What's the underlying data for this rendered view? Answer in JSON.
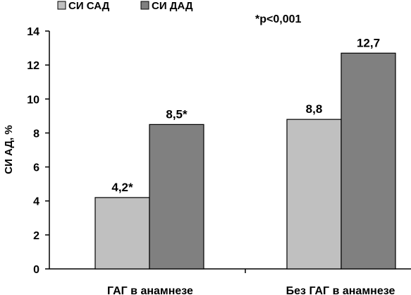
{
  "chart_data": {
    "type": "bar",
    "title": "",
    "xlabel": "",
    "ylabel": "СИ  АД, %",
    "ylim": [
      0,
      14
    ],
    "yticks": [
      0,
      2,
      4,
      6,
      8,
      10,
      12,
      14
    ],
    "y_tick_labels": [
      "0",
      "2",
      "4",
      "6",
      "8",
      "10",
      "12",
      "14"
    ],
    "grid": false,
    "legend_position": "top-left",
    "annotation": "*р<0,001",
    "categories": [
      "ГАГ в анамнезе",
      "Без ГАГ в анамнезе"
    ],
    "series": [
      {
        "name": "СИ САД",
        "values": [
          4.2,
          8.8
        ],
        "labels": [
          "4,2*",
          "8,8"
        ],
        "color": "#c0c0c0"
      },
      {
        "name": "СИ ДАД",
        "values": [
          8.5,
          12.7
        ],
        "labels": [
          "8,5*",
          "12,7"
        ],
        "color": "#808080"
      }
    ]
  }
}
